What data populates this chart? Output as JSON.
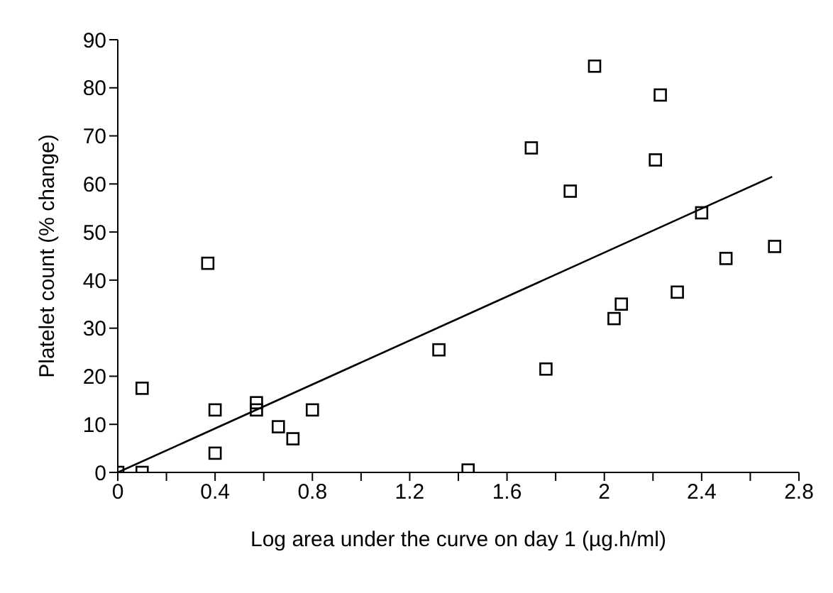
{
  "chart_data": {
    "type": "scatter",
    "xlabel": "Log area under the curve on day 1 (µg.h/ml)",
    "ylabel": "Platelet count (% change)",
    "xlim": [
      0,
      2.8
    ],
    "ylim": [
      0,
      90
    ],
    "xticks": [
      0,
      {
        "value": 0.2,
        "label": null
      },
      0.4,
      {
        "value": 0.6,
        "label": null
      },
      0.8,
      {
        "value": 1.0,
        "label": null
      },
      1.2,
      {
        "value": 1.4,
        "label": null
      },
      1.6,
      {
        "value": 1.8,
        "label": null
      },
      2,
      {
        "value": 2.2,
        "label": null
      },
      2.4,
      {
        "value": 2.6,
        "label": null
      },
      2.8
    ],
    "yticks": [
      0,
      10,
      20,
      30,
      40,
      50,
      60,
      70,
      80,
      90
    ],
    "grid": false,
    "marker": "square",
    "series": [
      {
        "color": "#000000",
        "x": [
          0,
          0.1,
          0.1,
          0.37,
          0.4,
          0.4,
          0.57,
          0.57,
          0.66,
          0.72,
          0.8,
          1.32,
          1.44,
          1.7,
          1.76,
          1.86,
          1.96,
          2.04,
          2.07,
          2.21,
          2.23,
          2.3,
          2.4,
          2.5,
          2.7
        ],
        "values": [
          0,
          17.5,
          0,
          43.5,
          4,
          13,
          14.5,
          13,
          9.5,
          7,
          13,
          25.5,
          0.5,
          67.5,
          21.5,
          58.5,
          84.5,
          32,
          35,
          65,
          78.5,
          37.5,
          54,
          44.5,
          47
        ]
      },
      {
        "type": "line",
        "color": "#000000",
        "marker": "none",
        "line_style": "solid",
        "x": [
          0,
          2.69
        ],
        "values": [
          0,
          61.5
        ]
      }
    ]
  }
}
